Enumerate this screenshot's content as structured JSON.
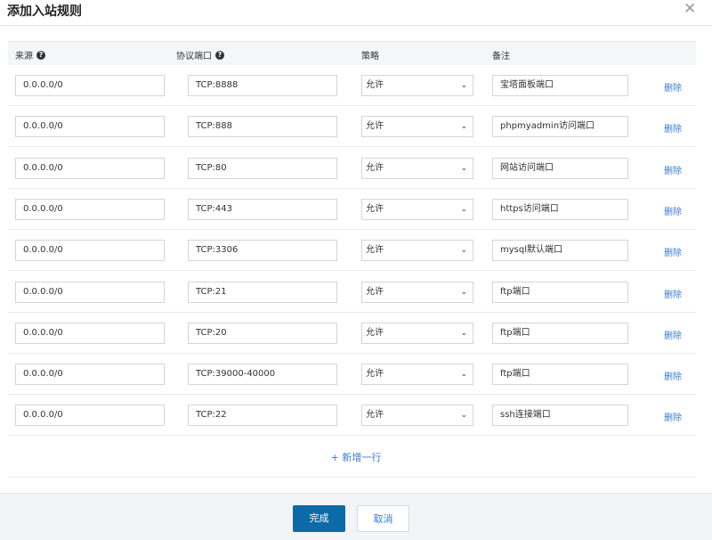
{
  "dialog": {
    "title": "添加入站规则",
    "close_icon": "close-icon"
  },
  "headers": {
    "source": "来源",
    "port": "协议端口",
    "policy": "策略",
    "note": "备注"
  },
  "rows": [
    {
      "source": "0.0.0.0/0",
      "port": "TCP:8888",
      "policy": "允许",
      "note": "宝塔面板端口",
      "delete": "删除"
    },
    {
      "source": "0.0.0.0/0",
      "port": "TCP:888",
      "policy": "允许",
      "note": "phpmyadmin访问端口",
      "delete": "删除"
    },
    {
      "source": "0.0.0.0/0",
      "port": "TCP:80",
      "policy": "允许",
      "note": "网站访问端口",
      "delete": "删除"
    },
    {
      "source": "0.0.0.0/0",
      "port": "TCP:443",
      "policy": "允许",
      "note": "https访问端口",
      "delete": "删除"
    },
    {
      "source": "0.0.0.0/0",
      "port": "TCP:3306",
      "policy": "允许",
      "note": "mysql默认端口",
      "delete": "删除"
    },
    {
      "source": "0.0.0.0/0",
      "port": "TCP:21",
      "policy": "允许",
      "note": "ftp端口",
      "delete": "删除"
    },
    {
      "source": "0.0.0.0/0",
      "port": "TCP:20",
      "policy": "允许",
      "note": "ftp端口",
      "delete": "删除"
    },
    {
      "source": "0.0.0.0/0",
      "port": "TCP:39000-40000",
      "policy": "允许",
      "note": "ftp端口",
      "delete": "删除"
    },
    {
      "source": "0.0.0.0/0",
      "port": "TCP:22",
      "policy": "允许",
      "note": "ssh连接端口",
      "delete": "删除"
    }
  ],
  "add_row": "+ 新增一行",
  "footer": {
    "ok": "完成",
    "cancel": "取消"
  },
  "colors": {
    "primary": "#0d6aa8",
    "link": "#3a7bd5"
  }
}
